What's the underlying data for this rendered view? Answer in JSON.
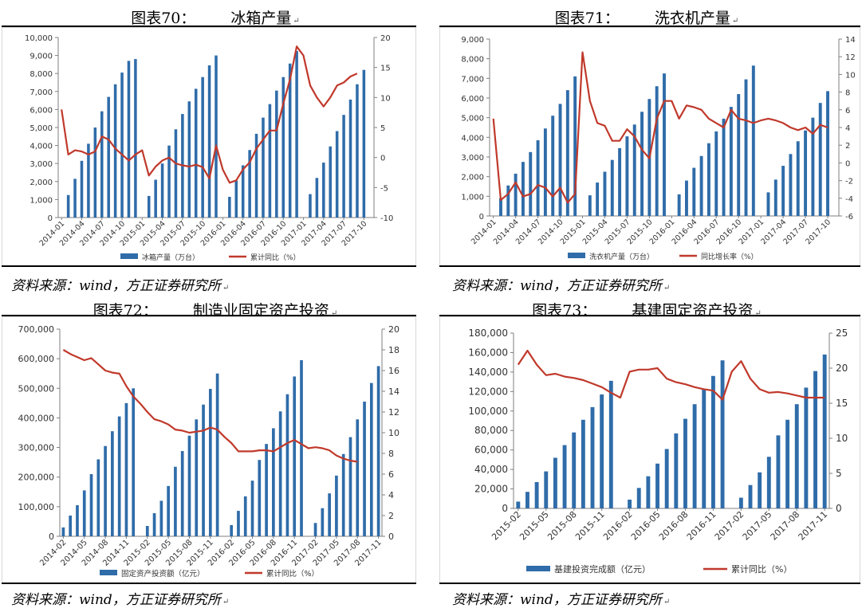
{
  "colors": {
    "bar": "#2f6ca9",
    "line": "#c0392b"
  },
  "panels": [
    {
      "fig_label": "图表70：",
      "title": "冰箱产量",
      "source": "资料来源：wind，方正证券研究所",
      "chart_data": {
        "type": "bar",
        "x": [
          "2014-01",
          "2014-02",
          "2014-03",
          "2014-04",
          "2014-05",
          "2014-06",
          "2014-07",
          "2014-08",
          "2014-09",
          "2014-10",
          "2014-11",
          "2014-12",
          "2015-01",
          "2015-02",
          "2015-03",
          "2015-04",
          "2015-05",
          "2015-06",
          "2015-07",
          "2015-08",
          "2015-09",
          "2015-10",
          "2015-11",
          "2015-12",
          "2016-01",
          "2016-02",
          "2016-03",
          "2016-04",
          "2016-05",
          "2016-06",
          "2016-07",
          "2016-08",
          "2016-09",
          "2016-10",
          "2016-11",
          "2016-12",
          "2017-01",
          "2017-02",
          "2017-03",
          "2017-04",
          "2017-05",
          "2017-06",
          "2017-07",
          "2017-08",
          "2017-09",
          "2017-10",
          "2017-11"
        ],
        "xticks": [
          "2014-01",
          "2014-04",
          "2014-07",
          "2014-10",
          "2015-01",
          "2015-04",
          "2015-07",
          "2015-10",
          "2016-01",
          "2016-04",
          "2016-07",
          "2016-10",
          "2017-01",
          "2017-04",
          "2017-07",
          "2017-10"
        ],
        "series": [
          {
            "name": "冰箱产量（万台）",
            "kind": "bar",
            "axis": "left",
            "values": [
              null,
              1250,
              2150,
              3150,
              4100,
              5000,
              5900,
              6700,
              7400,
              8050,
              8700,
              8800,
              null,
              1200,
              2100,
              3000,
              4000,
              4900,
              5750,
              6450,
              7150,
              7800,
              8450,
              9000,
              null,
              1150,
              2050,
              2900,
              3750,
              4650,
              5550,
              6300,
              7050,
              7800,
              8550,
              9250,
              null,
              1300,
              2200,
              3050,
              3950,
              4800,
              5700,
              6550,
              7400,
              8200,
              null
            ]
          },
          {
            "name": "累计同比（%）",
            "kind": "line",
            "axis": "right",
            "values": [
              8,
              0.5,
              1.2,
              1,
              0.5,
              1,
              3.5,
              3,
              1.5,
              0.5,
              -0.5,
              0.5,
              1.2,
              -3,
              -1.5,
              -0.5,
              0,
              -1,
              -1.3,
              -1.5,
              -1.2,
              -1.6,
              -3.5,
              2,
              -2,
              -4.2,
              -3.8,
              -2,
              -0.8,
              1.5,
              3,
              4.5,
              4.5,
              9,
              13,
              18.5,
              17,
              12,
              10,
              8.5,
              10,
              12,
              12.5,
              13.5,
              14,
              null,
              null
            ]
          }
        ],
        "yleft": {
          "min": 0,
          "max": 10000,
          "ticks": [
            "0",
            "1,000",
            "2,000",
            "3,000",
            "4,000",
            "5,000",
            "6,000",
            "7,000",
            "8,000",
            "9,000",
            "10,000"
          ]
        },
        "yright": {
          "min": -10,
          "max": 20,
          "ticks": [
            "-10",
            "-5",
            "0",
            "5",
            "10",
            "15",
            "20"
          ]
        }
      }
    },
    {
      "fig_label": "图表71：",
      "title": "洗衣机产量",
      "source": "资料来源：wind，方正证券研究所",
      "chart_data": {
        "type": "bar",
        "x": [
          "2014-01",
          "2014-02",
          "2014-03",
          "2014-04",
          "2014-05",
          "2014-06",
          "2014-07",
          "2014-08",
          "2014-09",
          "2014-10",
          "2014-11",
          "2014-12",
          "2015-01",
          "2015-02",
          "2015-03",
          "2015-04",
          "2015-05",
          "2015-06",
          "2015-07",
          "2015-08",
          "2015-09",
          "2015-10",
          "2015-11",
          "2015-12",
          "2016-01",
          "2016-02",
          "2016-03",
          "2016-04",
          "2016-05",
          "2016-06",
          "2016-07",
          "2016-08",
          "2016-09",
          "2016-10",
          "2016-11",
          "2016-12",
          "2017-01",
          "2017-02",
          "2017-03",
          "2017-04",
          "2017-05",
          "2017-06",
          "2017-07",
          "2017-08",
          "2017-09",
          "2017-10",
          "2017-11"
        ],
        "xticks": [
          "2014-01",
          "2014-04",
          "2014-07",
          "2014-10",
          "2015-01",
          "2015-04",
          "2015-07",
          "2015-10",
          "2016-01",
          "2016-04",
          "2016-07",
          "2016-10",
          "2017-01",
          "2017-04",
          "2017-07",
          "2017-10"
        ],
        "series": [
          {
            "name": "洗衣机产量（万台）",
            "kind": "bar",
            "axis": "left",
            "values": [
              null,
              900,
              1550,
              2150,
              2750,
              3250,
              3850,
              4450,
              5100,
              5700,
              6400,
              7100,
              null,
              1050,
              1700,
              2250,
              2850,
              3450,
              4050,
              4650,
              5300,
              5950,
              6600,
              7250,
              null,
              1100,
              1800,
              2450,
              3050,
              3700,
              4300,
              4950,
              5550,
              6200,
              6950,
              7650,
              null,
              1200,
              1850,
              2550,
              3150,
              3800,
              4350,
              5000,
              5750,
              6350,
              null
            ]
          },
          {
            "name": "同比增长率（%）",
            "kind": "line",
            "axis": "right",
            "values": [
              5,
              -4.2,
              -3.5,
              -2.2,
              -3.8,
              -3.5,
              -2.5,
              -2.8,
              -3.8,
              -2.8,
              -4.5,
              -3.5,
              12.5,
              7,
              4.5,
              4.2,
              2.5,
              2.5,
              3.8,
              3,
              1.5,
              0.5,
              5,
              7,
              7,
              5,
              6.5,
              6.3,
              6,
              5,
              4.5,
              4,
              6,
              5,
              4.8,
              4.5,
              4.8,
              5,
              4.8,
              4.5,
              4,
              3.7,
              4,
              3.3,
              4.3,
              4,
              null
            ]
          }
        ],
        "yleft": {
          "min": 0,
          "max": 9000,
          "ticks": [
            "0",
            "1,000",
            "2,000",
            "3,000",
            "4,000",
            "5,000",
            "6,000",
            "7,000",
            "8,000",
            "9,000"
          ]
        },
        "yright": {
          "min": -6,
          "max": 14,
          "ticks": [
            "-6",
            "-4",
            "-2",
            "0",
            "2",
            "4",
            "6",
            "8",
            "10",
            "12",
            "14"
          ]
        }
      }
    },
    {
      "fig_label": "图表72：",
      "title": "制造业固定资产投资",
      "source": "资料来源：wind，方正证券研究所",
      "chart_data": {
        "type": "bar",
        "x": [
          "2014-02",
          "2014-03",
          "2014-04",
          "2014-05",
          "2014-06",
          "2014-07",
          "2014-08",
          "2014-09",
          "2014-10",
          "2014-11",
          "2014-12",
          "2015-01",
          "2015-02",
          "2015-03",
          "2015-04",
          "2015-05",
          "2015-06",
          "2015-07",
          "2015-08",
          "2015-09",
          "2015-10",
          "2015-11",
          "2015-12",
          "2016-01",
          "2016-02",
          "2016-03",
          "2016-04",
          "2016-05",
          "2016-06",
          "2016-07",
          "2016-08",
          "2016-09",
          "2016-10",
          "2016-11",
          "2016-12",
          "2017-01",
          "2017-02",
          "2017-03",
          "2017-04",
          "2017-05",
          "2017-06",
          "2017-07",
          "2017-08",
          "2017-09",
          "2017-10",
          "2017-11"
        ],
        "xticks": [
          "2014-02",
          "2014-05",
          "2014-08",
          "2014-11",
          "2015-02",
          "2015-05",
          "2015-08",
          "2015-11",
          "2016-02",
          "2016-05",
          "2016-08",
          "2016-11",
          "2017-02",
          "2017-05",
          "2017-08",
          "2017-11"
        ],
        "series": [
          {
            "name": "固定资产投资额（亿元）",
            "kind": "bar",
            "axis": "left",
            "values": [
              30000,
              70000,
              105000,
              155000,
              210000,
              260000,
              305000,
              355000,
              405000,
              450000,
              500000,
              null,
              35000,
              78000,
              120000,
              170000,
              235000,
              288000,
              340000,
              395000,
              445000,
              498000,
              550000,
              null,
              38000,
              86000,
              135000,
              188000,
              258000,
              312000,
              365000,
              422000,
              480000,
              540000,
              595000,
              null,
              45000,
              95000,
              145000,
              205000,
              278000,
              335000,
              395000,
              455000,
              518000,
              575000
            ]
          },
          {
            "name": "累计同比（%）",
            "kind": "line",
            "axis": "right",
            "values": [
              18,
              17.6,
              17.3,
              17,
              17.2,
              16.6,
              16,
              15.8,
              15.7,
              14.5,
              13.5,
              12.8,
              12,
              11.3,
              11.1,
              10.8,
              10.3,
              10.2,
              10,
              10.1,
              10.2,
              10.5,
              10.3,
              9.6,
              9,
              8.2,
              8.2,
              8.2,
              8.3,
              8.3,
              8.2,
              8.6,
              9,
              9.3,
              8.9,
              8.5,
              8.6,
              8.5,
              8.3,
              7.8,
              7.5,
              7.3,
              7.2,
              null,
              null,
              null
            ]
          }
        ],
        "yleft": {
          "min": 0,
          "max": 700000,
          "ticks": [
            "0",
            "100,000",
            "200,000",
            "300,000",
            "400,000",
            "500,000",
            "600,000",
            "700,000"
          ]
        },
        "yright": {
          "min": 0,
          "max": 20,
          "ticks": [
            "0",
            "2",
            "4",
            "6",
            "8",
            "10",
            "12",
            "14",
            "16",
            "18",
            "20"
          ]
        }
      }
    },
    {
      "fig_label": "图表73：",
      "title": "基建固定资产投资",
      "source": "资料来源：wind，方正证券研究所",
      "chart_data": {
        "type": "bar",
        "x": [
          "2015-02",
          "2015-03",
          "2015-04",
          "2015-05",
          "2015-06",
          "2015-07",
          "2015-08",
          "2015-09",
          "2015-10",
          "2015-11",
          "2015-12",
          "2016-01",
          "2016-02",
          "2016-03",
          "2016-04",
          "2016-05",
          "2016-06",
          "2016-07",
          "2016-08",
          "2016-09",
          "2016-10",
          "2016-11",
          "2016-12",
          "2017-01",
          "2017-02",
          "2017-03",
          "2017-04",
          "2017-05",
          "2017-06",
          "2017-07",
          "2017-08",
          "2017-09",
          "2017-10",
          "2017-11"
        ],
        "xticks": [
          "2015-02",
          "2015-05",
          "2015-08",
          "2015-11",
          "2016-02",
          "2016-05",
          "2016-08",
          "2016-11",
          "2017-02",
          "2017-05",
          "2017-08",
          "2017-11"
        ],
        "series": [
          {
            "name": "基建投资完成额（亿元）",
            "kind": "bar",
            "axis": "left",
            "values": [
              7000,
              17000,
              27000,
              38000,
              52000,
              65000,
              78000,
              91000,
              104000,
              117000,
              131000,
              null,
              9000,
              21000,
              33000,
              46000,
              61000,
              77000,
              92000,
              107000,
              122000,
              136000,
              152000,
              null,
              11000,
              24000,
              37000,
              53000,
              75000,
              91000,
              107000,
              124000,
              141000,
              158000
            ]
          },
          {
            "name": "累计同比（%）",
            "kind": "line",
            "axis": "right",
            "values": [
              20.5,
              22.5,
              20.5,
              19,
              19.2,
              18.8,
              18.6,
              18.3,
              17.8,
              17.3,
              16.5,
              15.8,
              19.5,
              19.8,
              19.8,
              20,
              18.5,
              18,
              17.7,
              17.3,
              17,
              16.8,
              15.5,
              19.5,
              21,
              18.5,
              17,
              16.5,
              16.6,
              16.4,
              16.1,
              15.8,
              15.8,
              15.8
            ]
          }
        ],
        "yleft": {
          "min": 0,
          "max": 180000,
          "ticks": [
            "0",
            "20,000",
            "40,000",
            "60,000",
            "80,000",
            "100,000",
            "120,000",
            "140,000",
            "160,000",
            "180,000"
          ]
        },
        "yright": {
          "min": 0,
          "max": 25,
          "ticks": [
            "0",
            "5",
            "10",
            "15",
            "20",
            "25"
          ]
        }
      }
    }
  ]
}
